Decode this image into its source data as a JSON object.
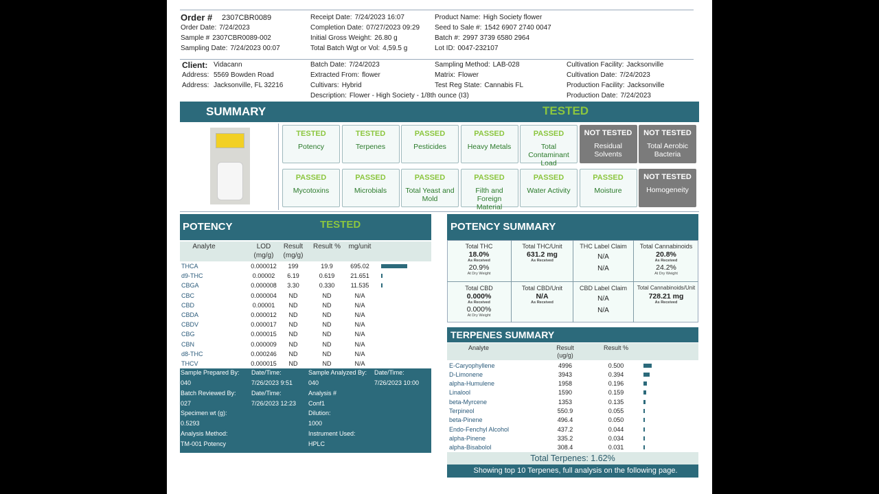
{
  "order": [
    [
      {
        "label": "Order #",
        "value": "2307CBR0089"
      },
      {
        "label": "Order Date:",
        "value": "7/24/2023"
      },
      {
        "label": "Sample #",
        "value": "2307CBR0089-002"
      },
      {
        "label": "Sampling Date:",
        "value": "7/24/2023 00:07"
      }
    ],
    [
      {
        "label": "Receipt Date:",
        "value": "7/24/2023 16:07"
      },
      {
        "label": "Completion Date:",
        "value": "07/27/2023 09:29"
      },
      {
        "label": "Initial Gross Weight:",
        "value": "26.80 g"
      },
      {
        "label": "Total Batch Wgt or Vol:",
        "value": "4,59.5 g"
      }
    ],
    [
      {
        "label": "Product Name:",
        "value": "High Society flower"
      },
      {
        "label": "Seed to Sale #:",
        "value": "1542 6907 2740 0047"
      },
      {
        "label": "Batch #:",
        "value": "2997 3739 6580 2964"
      },
      {
        "label": "Lot ID:",
        "value": "0047-232107"
      }
    ]
  ],
  "client": [
    [
      {
        "label": "Client:",
        "value": "Vidacann"
      },
      {
        "label": "Address:",
        "value": "5569 Bowden Road"
      },
      {
        "label": "Address:",
        "value": "Jacksonville, FL  32216"
      }
    ],
    [
      {
        "label": "Batch Date:",
        "value": "7/24/2023"
      },
      {
        "label": "Extracted From:",
        "value": "flower"
      },
      {
        "label": "Cultivars:",
        "value": "Hybrid"
      },
      {
        "label": "Description:",
        "value": "Flower - High Society - 1/8th ounce (I3)"
      }
    ],
    [
      {
        "label": "Sampling Method:",
        "value": "LAB-028"
      },
      {
        "label": "Matrix:",
        "value": "Flower"
      },
      {
        "label": "Test Reg State:",
        "value": "Cannabis FL"
      }
    ],
    [
      {
        "label": "Cultivation Facility:",
        "value": "Jacksonville"
      },
      {
        "label": "Cultivation Date:",
        "value": "7/24/2023"
      },
      {
        "label": "Production Facility:",
        "value": "Jacksonville"
      },
      {
        "label": "Production Date:",
        "value": "7/24/2023"
      }
    ]
  ],
  "summary": {
    "title": "SUMMARY",
    "status": "TESTED",
    "tests": [
      [
        {
          "status": "TESTED",
          "name": "Potency"
        },
        {
          "status": "TESTED",
          "name": "Terpenes"
        },
        {
          "status": "PASSED",
          "name": "Pesticides"
        },
        {
          "status": "PASSED",
          "name": "Heavy Metals"
        },
        {
          "status": "PASSED",
          "name": "Total Contaminant Load"
        },
        {
          "status": "NOT TESTED",
          "name": "Residual Solvents"
        },
        {
          "status": "NOT TESTED",
          "name": "Total Aerobic Bacteria"
        }
      ],
      [
        {
          "status": "PASSED",
          "name": "Mycotoxins"
        },
        {
          "status": "PASSED",
          "name": "Microbials"
        },
        {
          "status": "PASSED",
          "name": "Total Yeast and Mold"
        },
        {
          "status": "PASSED",
          "name": "Filth and Foreign Material"
        },
        {
          "status": "PASSED",
          "name": "Water Activity"
        },
        {
          "status": "PASSED",
          "name": "Moisture"
        },
        {
          "status": "NOT TESTED",
          "name": "Homogeneity"
        }
      ]
    ]
  },
  "potency": {
    "title": "POTENCY",
    "status": "TESTED",
    "headers": [
      "Analyte",
      "LOD (mg/g)",
      "Result (mg/g)",
      "Result %",
      "mg/unit"
    ],
    "rows": [
      [
        "THCA",
        "0.000012",
        "199",
        "19.9",
        "695.02"
      ],
      [
        "d9-THC",
        "0.00002",
        "6.19",
        "0.619",
        "21.651"
      ],
      [
        "CBGA",
        "0.000008",
        "3.30",
        "0.330",
        "11.535"
      ],
      [
        "CBC",
        "0.000004",
        "ND",
        "ND",
        "N/A"
      ],
      [
        "CBD",
        "0.00001",
        "ND",
        "ND",
        "N/A"
      ],
      [
        "CBDA",
        "0.000012",
        "ND",
        "ND",
        "N/A"
      ],
      [
        "CBDV",
        "0.000017",
        "ND",
        "ND",
        "N/A"
      ],
      [
        "CBG",
        "0.000015",
        "ND",
        "ND",
        "N/A"
      ],
      [
        "CBN",
        "0.000009",
        "ND",
        "ND",
        "N/A"
      ],
      [
        "d8-THC",
        "0.000246",
        "ND",
        "ND",
        "N/A"
      ],
      [
        "THCV",
        "0.000015",
        "ND",
        "ND",
        "N/A"
      ]
    ],
    "info_left": [
      [
        {
          "label": "Sample Prepared By:",
          "value": "040"
        },
        {
          "label": "Date/Time:",
          "value": "7/26/2023 9:51"
        }
      ],
      [
        {
          "label": "Batch Reviewed By:",
          "value": "027"
        },
        {
          "label": "Date/Time:",
          "value": "7/26/2023 12:23"
        }
      ],
      [
        {
          "label": "Specimen wt (g):",
          "value": "0.5293"
        }
      ],
      [
        {
          "label": "Analysis Method:",
          "value": "TM-001 Potency"
        }
      ]
    ],
    "info_right": [
      [
        {
          "label": "Sample Analyzed By:",
          "value": "040"
        },
        {
          "label": "Date/Time:",
          "value": "7/26/2023 10:00"
        }
      ],
      [
        {
          "label": "Analysis #",
          "value": "Conf1"
        }
      ],
      [
        {
          "label": "Dilution:",
          "value": "1000"
        }
      ],
      [
        {
          "label": "Instrument Used:",
          "value": "HPLC"
        }
      ]
    ]
  },
  "potency_summary": {
    "title": "POTENCY SUMMARY",
    "cells": [
      {
        "title": "Total THC",
        "lines": [
          "18.0%",
          "As Received",
          "20.9%",
          "At Dry Weight"
        ]
      },
      {
        "title": "Total THC/Unit",
        "lines": [
          "631.2 mg",
          "As Received"
        ]
      },
      {
        "title": "THC Label Claim",
        "lines": [
          "N/A",
          "N/A"
        ]
      },
      {
        "title": "Total Cannabinoids",
        "lines": [
          "20.8%",
          "As Received",
          "24.2%",
          "At Dry Weight"
        ]
      },
      {
        "title": "Total CBD",
        "lines": [
          "0.000%",
          "As Received",
          "0.000%",
          "At Dry Weight"
        ]
      },
      {
        "title": "Total CBD/Unit",
        "lines": [
          "N/A",
          "As Received"
        ]
      },
      {
        "title": "CBD Label Claim",
        "lines": [
          "N/A",
          "N/A"
        ]
      },
      {
        "title": "Total Cannabinoids/Unit",
        "lines": [
          "728.21 mg",
          "As Received"
        ]
      }
    ]
  },
  "terpenes": {
    "title": "TERPENES SUMMARY",
    "headers": [
      "Analyte",
      "Result (ug/g)",
      "Result %"
    ],
    "rows": [
      [
        "E-Caryophyllene",
        "4996",
        "0.500"
      ],
      [
        "D-Limonene",
        "3943",
        "0.394"
      ],
      [
        "alpha-Humulene",
        "1958",
        "0.196"
      ],
      [
        "Linalool",
        "1590",
        "0.159"
      ],
      [
        "beta-Myrcene",
        "1353",
        "0.135"
      ],
      [
        "Terpineol",
        "550.9",
        "0.055"
      ],
      [
        "beta-Pinene",
        "496.4",
        "0.050"
      ],
      [
        "Endo-Fenchyl Alcohol",
        "437.2",
        "0.044"
      ],
      [
        "alpha-Pinene",
        "335.2",
        "0.034"
      ],
      [
        "alpha-Bisabolol",
        "308.4",
        "0.031"
      ]
    ],
    "total": "Total Terpenes:  1.62%",
    "note": "Showing top 10 Terpenes, full analysis on the following page."
  }
}
